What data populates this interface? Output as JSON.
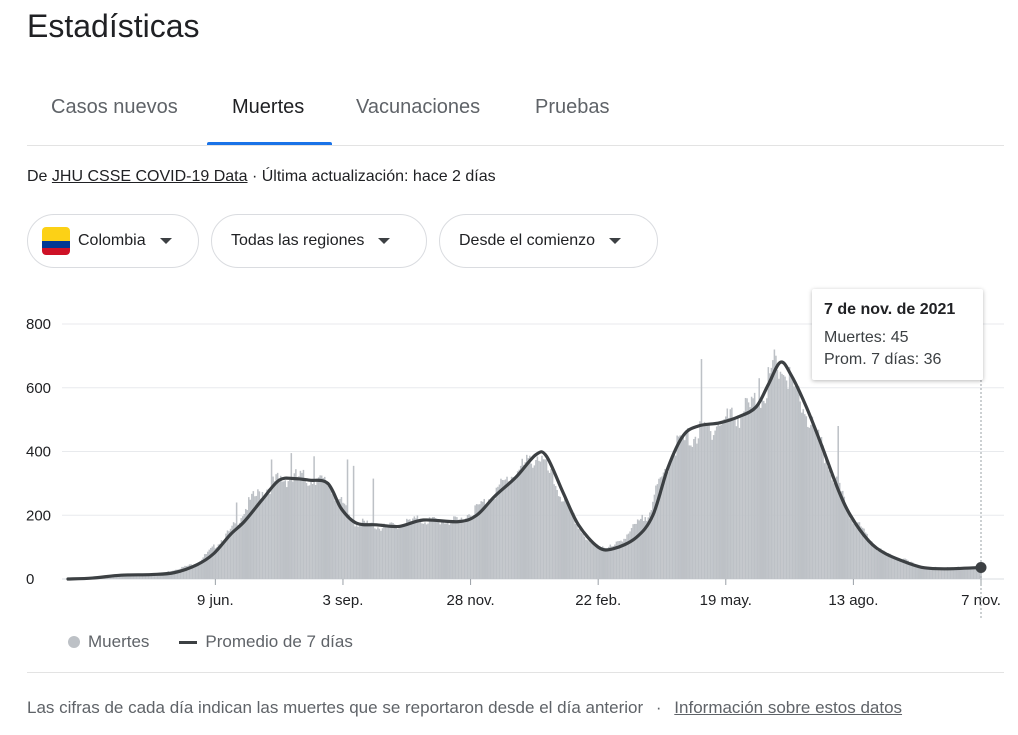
{
  "page": {
    "title": "Estadísticas"
  },
  "tabs": [
    {
      "label": "Casos nuevos",
      "active": false
    },
    {
      "label": "Muertes",
      "active": true
    },
    {
      "label": "Vacunaciones",
      "active": false
    },
    {
      "label": "Pruebas",
      "active": false
    }
  ],
  "source": {
    "prefix": "De",
    "link_label": "JHU CSSE COVID-19 Data",
    "updated": "· Última actualización: hace 2 días"
  },
  "filters": {
    "country": "Colombia",
    "region": "Todas las regiones",
    "range": "Desde el comienzo"
  },
  "tooltip": {
    "date": "7 de nov. de 2021",
    "deaths": "Muertes: 45",
    "avg": "Prom. 7 días: 36"
  },
  "legend": {
    "bars": "Muertes",
    "line": "Promedio de 7 días"
  },
  "footnote": {
    "text": "Las cifras de cada día indican las muertes que se reportaron desde el día anterior",
    "separator": "·",
    "link_label": "Información sobre estos datos"
  },
  "colors": {
    "bars": "#bdc1c6",
    "line": "#3c4043",
    "grid": "#e8eaed",
    "accent": "#1a73e8"
  },
  "chart_data": {
    "type": "bar",
    "x_tick_labels": [
      "9 jun.",
      "3 sep.",
      "28 nov.",
      "22 feb.",
      "19 may.",
      "13 ago.",
      "7 nov."
    ],
    "y_ticks": [
      0,
      200,
      400,
      600,
      800
    ],
    "ylim": [
      0,
      800
    ],
    "grid": true,
    "legend_position": "bottom-left",
    "x_start": "2020-03-16",
    "x_end": "2021-11-07",
    "series": [
      {
        "name": "Muertes",
        "kind": "bar",
        "keyframes": [
          [
            "2020-03-16",
            0
          ],
          [
            "2020-04-15",
            10
          ],
          [
            "2020-05-15",
            15
          ],
          [
            "2020-06-09",
            50
          ],
          [
            "2020-07-01",
            150
          ],
          [
            "2020-07-15",
            250
          ],
          [
            "2020-08-01",
            310
          ],
          [
            "2020-08-15",
            320
          ],
          [
            "2020-09-03",
            300
          ],
          [
            "2020-09-20",
            180
          ],
          [
            "2020-10-10",
            160
          ],
          [
            "2020-11-01",
            185
          ],
          [
            "2020-11-28",
            180
          ],
          [
            "2020-12-15",
            240
          ],
          [
            "2021-01-01",
            320
          ],
          [
            "2021-01-20",
            390
          ],
          [
            "2021-02-05",
            250
          ],
          [
            "2021-02-22",
            110
          ],
          [
            "2021-03-10",
            100
          ],
          [
            "2021-04-01",
            200
          ],
          [
            "2021-04-20",
            420
          ],
          [
            "2021-05-19",
            490
          ],
          [
            "2021-06-10",
            540
          ],
          [
            "2021-06-28",
            670
          ],
          [
            "2021-07-15",
            520
          ],
          [
            "2021-08-13",
            200
          ],
          [
            "2021-09-01",
            90
          ],
          [
            "2021-10-01",
            35
          ],
          [
            "2021-11-07",
            36
          ]
        ],
        "spikes": [
          [
            "2020-07-05",
            240
          ],
          [
            "2020-07-28",
            375
          ],
          [
            "2020-08-10",
            395
          ],
          [
            "2020-08-25",
            385
          ],
          [
            "2020-09-16",
            375
          ],
          [
            "2020-09-20",
            355
          ],
          [
            "2020-10-03",
            315
          ],
          [
            "2021-05-07",
            690
          ],
          [
            "2021-06-14",
            630
          ],
          [
            "2021-06-24",
            720
          ],
          [
            "2021-08-05",
            480
          ]
        ],
        "last": [
          "2021-11-07",
          45
        ]
      },
      {
        "name": "Promedio de 7 días",
        "kind": "line",
        "points": [
          [
            "2020-03-16",
            0
          ],
          [
            "2020-04-01",
            3
          ],
          [
            "2020-04-20",
            12
          ],
          [
            "2020-05-10",
            14
          ],
          [
            "2020-05-25",
            20
          ],
          [
            "2020-06-09",
            45
          ],
          [
            "2020-06-20",
            80
          ],
          [
            "2020-07-01",
            140
          ],
          [
            "2020-07-10",
            180
          ],
          [
            "2020-07-22",
            250
          ],
          [
            "2020-08-02",
            310
          ],
          [
            "2020-08-12",
            315
          ],
          [
            "2020-08-22",
            310
          ],
          [
            "2020-09-03",
            300
          ],
          [
            "2020-09-12",
            220
          ],
          [
            "2020-09-22",
            175
          ],
          [
            "2020-10-05",
            170
          ],
          [
            "2020-10-20",
            165
          ],
          [
            "2020-11-05",
            185
          ],
          [
            "2020-11-28",
            180
          ],
          [
            "2020-12-10",
            200
          ],
          [
            "2020-12-22",
            260
          ],
          [
            "2021-01-05",
            320
          ],
          [
            "2021-01-18",
            390
          ],
          [
            "2021-01-25",
            385
          ],
          [
            "2021-02-05",
            270
          ],
          [
            "2021-02-15",
            170
          ],
          [
            "2021-02-28",
            100
          ],
          [
            "2021-03-10",
            95
          ],
          [
            "2021-03-25",
            130
          ],
          [
            "2021-04-05",
            200
          ],
          [
            "2021-04-15",
            350
          ],
          [
            "2021-04-25",
            450
          ],
          [
            "2021-05-05",
            480
          ],
          [
            "2021-05-19",
            490
          ],
          [
            "2021-06-01",
            510
          ],
          [
            "2021-06-12",
            540
          ],
          [
            "2021-06-20",
            610
          ],
          [
            "2021-06-28",
            680
          ],
          [
            "2021-07-05",
            640
          ],
          [
            "2021-07-15",
            540
          ],
          [
            "2021-07-25",
            420
          ],
          [
            "2021-08-05",
            280
          ],
          [
            "2021-08-13",
            200
          ],
          [
            "2021-08-25",
            120
          ],
          [
            "2021-09-05",
            80
          ],
          [
            "2021-09-20",
            50
          ],
          [
            "2021-10-01",
            35
          ],
          [
            "2021-10-15",
            32
          ],
          [
            "2021-11-07",
            36
          ]
        ]
      }
    ]
  }
}
